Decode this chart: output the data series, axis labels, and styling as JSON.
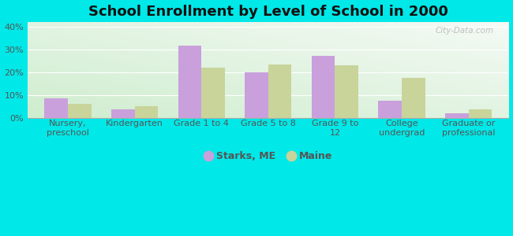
{
  "title": "School Enrollment by Level of School in 2000",
  "categories": [
    "Nursery,\npreschool",
    "Kindergarten",
    "Grade 1 to 4",
    "Grade 5 to 8",
    "Grade 9 to\n12",
    "College\nundergrad",
    "Graduate or\nprofessional"
  ],
  "starks_values": [
    8.5,
    3.5,
    31.5,
    20.0,
    27.0,
    7.5,
    2.0
  ],
  "maine_values": [
    6.0,
    5.0,
    22.0,
    23.5,
    23.0,
    17.5,
    3.5
  ],
  "starks_color": "#c9a0dc",
  "maine_color": "#c8d49a",
  "background_outer": "#00e8e8",
  "ylim": [
    0,
    42
  ],
  "yticks": [
    0,
    10,
    20,
    30,
    40
  ],
  "ytick_labels": [
    "0%",
    "10%",
    "20%",
    "30%",
    "40%"
  ],
  "legend_starks": "Starks, ME",
  "legend_maine": "Maine",
  "bar_width": 0.35,
  "title_fontsize": 13,
  "tick_fontsize": 8,
  "legend_fontsize": 9,
  "grid_color": "#dddddd",
  "bg_top": "#f5faf5",
  "bg_bottom": "#cce8cc"
}
